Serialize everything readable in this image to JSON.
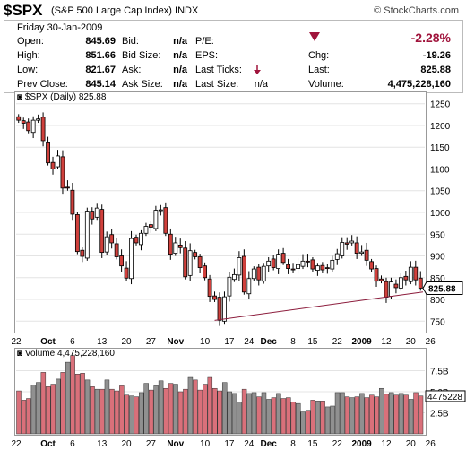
{
  "header": {
    "symbol": "$SPX",
    "description": "(S&P 500 Large Cap Index)",
    "exchange": "INDX",
    "brand": "© StockCharts.com"
  },
  "quote": {
    "date": "Friday  30-Jan-2009",
    "open_label": "Open:",
    "open": "845.69",
    "high_label": "High:",
    "high": "851.66",
    "low_label": "Low:",
    "low": "821.67",
    "prev_close_label": "Prev Close:",
    "prev_close": "845.14",
    "bid_label": "Bid:",
    "bid": "n/a",
    "bid_size_label": "Bid Size:",
    "bid_size": "n/a",
    "ask_label": "Ask:",
    "ask": "n/a",
    "ask_size_label": "Ask Size:",
    "ask_size": "n/a",
    "pe_label": "P/E:",
    "eps_label": "EPS:",
    "last_ticks_label": "Last Ticks:",
    "last_size_label": "Last Size:",
    "last_size": "n/a",
    "pct_change": "-2.28%",
    "chg_label": "Chg:",
    "chg": "-19.26",
    "last_label": "Last:",
    "last": "825.88",
    "volume_label": "Volume:",
    "volume": "4,475,228,160",
    "down_color": "#a0143c"
  },
  "chart_data": [
    {
      "type": "candlestick",
      "title": "$SPX (Daily) 825.88",
      "ylim": [
        730,
        1270
      ],
      "yticks": [
        750,
        800,
        850,
        900,
        950,
        1000,
        1050,
        1100,
        1150,
        1200,
        1250
      ],
      "xticks": [
        "22",
        "Oct",
        "6",
        "13",
        "20",
        "27",
        "Nov",
        "10",
        "17",
        "24",
        "Dec",
        "8",
        "15",
        "22",
        "2009",
        "12",
        "20",
        "26"
      ],
      "last_price": 825.88,
      "up_color": "#ffffff",
      "down_color": "#d0403c",
      "close": [
        1212,
        1205,
        1188,
        1212,
        1215,
        1165,
        1114,
        1100,
        1130,
        1056,
        1056,
        996,
        910,
        899,
        1003,
        985,
        1010,
        908,
        944,
        930,
        898,
        877,
        849,
        940,
        930,
        952,
        968,
        966,
        1005,
        1006,
        952,
        904,
        930,
        919,
        852,
        912,
        898,
        873,
        850,
        807,
        800,
        752,
        806,
        851,
        857,
        896,
        817,
        848,
        870,
        845,
        876,
        888,
        873,
        904,
        885,
        871,
        868,
        880,
        888,
        887,
        870,
        877,
        868,
        872,
        890,
        905,
        931,
        927,
        934,
        906,
        909,
        890,
        870,
        842,
        843,
        805,
        840,
        827,
        850,
        845,
        874,
        845,
        826
      ],
      "series_name": "$SPX"
    },
    {
      "type": "bar",
      "title": "Volume 4,475,228,160",
      "ylim": [
        0,
        10000000000
      ],
      "yticks": [
        "2.5B",
        "5.0B",
        "7.5B"
      ],
      "last_volume": "4475228",
      "values": [
        5.1,
        4.0,
        4.2,
        5.8,
        6.1,
        7.3,
        5.6,
        5.9,
        6.5,
        7.3,
        8.5,
        9.3,
        7.1,
        7.2,
        6.4,
        5.6,
        5.3,
        5.3,
        6.4,
        5.3,
        5.1,
        5.7,
        4.6,
        4.5,
        4.4,
        4.9,
        6.0,
        5.2,
        5.7,
        6.3,
        5.4,
        6.0,
        5.9,
        5.0,
        5.3,
        6.7,
        6.4,
        5.2,
        5.9,
        6.7,
        5.4,
        5.1,
        6.1,
        5.0,
        4.8,
        3.8,
        5.3,
        4.8,
        4.9,
        4.4,
        4.9,
        4.1,
        4.3,
        4.8,
        4.2,
        4.3,
        3.8,
        3.6,
        2.6,
        2.8,
        4.0,
        3.9,
        3.9,
        3.2,
        3.3,
        4.9,
        4.9,
        4.4,
        4.3,
        4.4,
        4.8,
        4.3,
        4.6,
        4.4,
        5.4,
        4.7,
        4.9,
        4.6,
        4.8,
        4.6,
        4.1,
        4.9,
        4.5
      ]
    }
  ]
}
